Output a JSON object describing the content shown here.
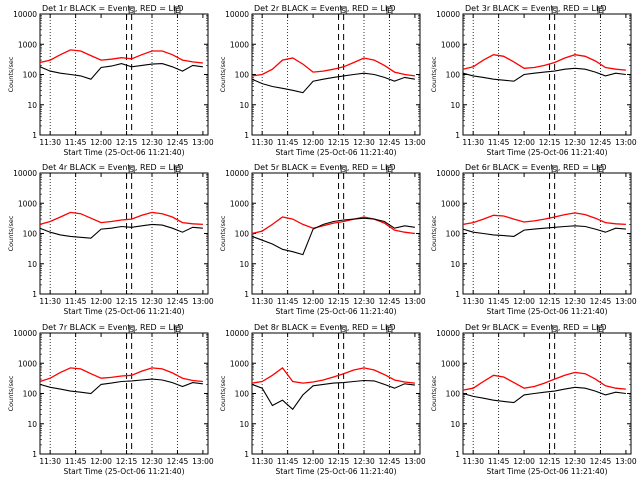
{
  "figure": {
    "ylabel": "Counts/sec",
    "xlabel": "Start Time (25-Oct-06 11:21:40)",
    "legend_text": "BLACK = Events, RED = LLD",
    "y_ticks": [
      "1",
      "10",
      "100",
      "1000",
      "10000"
    ],
    "x_ticks": [
      "11:30",
      "11:45",
      "12:00",
      "12:15",
      "12:30",
      "12:45",
      "13:00"
    ],
    "top_markers": [
      "S",
      "E"
    ],
    "colors": {
      "events": "#000000",
      "lld": "#ff0000"
    },
    "y_scale": "log"
  },
  "chart_data": [
    {
      "type": "line",
      "title": "Det 1r BLACK = Events, RED = LLD",
      "xlabel": "Start Time (25-Oct-06 11:21:40)",
      "ylabel": "Counts/sec",
      "x": [
        "11:24",
        "11:30",
        "11:36",
        "11:42",
        "11:48",
        "11:54",
        "12:00",
        "12:06",
        "12:12",
        "12:18",
        "12:24",
        "12:30",
        "12:36",
        "12:42",
        "12:48",
        "12:54",
        "13:00"
      ],
      "series": [
        {
          "name": "LLD",
          "values": [
            250,
            300,
            450,
            650,
            600,
            420,
            300,
            320,
            360,
            330,
            450,
            600,
            600,
            450,
            300,
            260,
            240
          ]
        },
        {
          "name": "Events",
          "values": [
            180,
            130,
            110,
            100,
            90,
            70,
            170,
            190,
            230,
            180,
            200,
            220,
            230,
            180,
            130,
            200,
            180
          ]
        }
      ],
      "ylim": [
        1,
        10000
      ],
      "xlim": [
        "11:24",
        "13:03"
      ],
      "grid": false
    },
    {
      "type": "line",
      "title": "Det 2r BLACK = Events, RED = LLD",
      "xlabel": "Start Time (25-Oct-06 11:21:40)",
      "ylabel": "Counts/sec",
      "x": [
        "11:24",
        "11:30",
        "11:36",
        "11:42",
        "11:48",
        "11:54",
        "12:00",
        "12:06",
        "12:12",
        "12:18",
        "12:24",
        "12:30",
        "12:36",
        "12:42",
        "12:48",
        "12:54",
        "13:00"
      ],
      "series": [
        {
          "name": "LLD",
          "values": [
            90,
            100,
            150,
            300,
            350,
            220,
            120,
            130,
            150,
            180,
            250,
            350,
            300,
            200,
            120,
            100,
            90
          ]
        },
        {
          "name": "Events",
          "values": [
            70,
            50,
            40,
            35,
            30,
            25,
            60,
            70,
            80,
            90,
            100,
            110,
            100,
            80,
            60,
            80,
            70
          ]
        }
      ],
      "ylim": [
        1,
        10000
      ],
      "xlim": [
        "11:24",
        "13:03"
      ],
      "grid": false
    },
    {
      "type": "line",
      "title": "Det 3r BLACK = Events, RED = LLD",
      "xlabel": "Start Time (25-Oct-06 11:21:40)",
      "ylabel": "Counts/sec",
      "x": [
        "11:24",
        "11:30",
        "11:36",
        "11:42",
        "11:48",
        "11:54",
        "12:00",
        "12:06",
        "12:12",
        "12:18",
        "12:24",
        "12:30",
        "12:36",
        "12:42",
        "12:48",
        "12:54",
        "13:00"
      ],
      "series": [
        {
          "name": "LLD",
          "values": [
            150,
            180,
            300,
            450,
            400,
            260,
            160,
            170,
            200,
            250,
            350,
            450,
            400,
            280,
            170,
            150,
            140
          ]
        },
        {
          "name": "Events",
          "values": [
            110,
            90,
            80,
            70,
            65,
            60,
            100,
            110,
            120,
            130,
            150,
            160,
            150,
            120,
            90,
            110,
            100
          ]
        }
      ],
      "ylim": [
        1,
        10000
      ],
      "xlim": [
        "11:24",
        "13:03"
      ],
      "grid": false
    },
    {
      "type": "line",
      "title": "Det 4r BLACK = Events, RED = LLD",
      "xlabel": "Start Time (25-Oct-06 11:21:40)",
      "ylabel": "Counts/sec",
      "x": [
        "11:24",
        "11:30",
        "11:36",
        "11:42",
        "11:48",
        "11:54",
        "12:00",
        "12:06",
        "12:12",
        "12:18",
        "12:24",
        "12:30",
        "12:36",
        "12:42",
        "12:48",
        "12:54",
        "13:00"
      ],
      "series": [
        {
          "name": "LLD",
          "values": [
            200,
            250,
            350,
            500,
            450,
            320,
            230,
            250,
            280,
            300,
            400,
            500,
            450,
            350,
            230,
            210,
            200
          ]
        },
        {
          "name": "Events",
          "values": [
            150,
            110,
            90,
            80,
            75,
            70,
            140,
            150,
            170,
            160,
            180,
            200,
            190,
            150,
            110,
            160,
            150
          ]
        }
      ],
      "ylim": [
        1,
        10000
      ],
      "xlim": [
        "11:24",
        "13:03"
      ],
      "grid": false
    },
    {
      "type": "line",
      "title": "Det 5r BLACK = Events, RED = LLD",
      "xlabel": "Start Time (25-Oct-06 11:21:40)",
      "ylabel": "Counts/sec",
      "x": [
        "11:24",
        "11:30",
        "11:36",
        "11:42",
        "11:48",
        "11:54",
        "12:00",
        "12:06",
        "12:12",
        "12:18",
        "12:24",
        "12:30",
        "12:36",
        "12:42",
        "12:48",
        "12:54",
        "13:00"
      ],
      "series": [
        {
          "name": "LLD",
          "values": [
            100,
            120,
            200,
            350,
            300,
            200,
            150,
            180,
            220,
            250,
            300,
            350,
            300,
            220,
            130,
            110,
            100
          ]
        },
        {
          "name": "Events",
          "values": [
            80,
            60,
            45,
            30,
            25,
            20,
            140,
            200,
            250,
            280,
            300,
            320,
            300,
            250,
            150,
            180,
            160
          ]
        }
      ],
      "ylim": [
        1,
        10000
      ],
      "xlim": [
        "11:24",
        "13:03"
      ],
      "grid": false
    },
    {
      "type": "line",
      "title": "Det 6r BLACK = Events, RED = LLD",
      "xlabel": "Start Time (25-Oct-06 11:21:40)",
      "ylabel": "Counts/sec",
      "x": [
        "11:24",
        "11:30",
        "11:36",
        "11:42",
        "11:48",
        "11:54",
        "12:00",
        "12:06",
        "12:12",
        "12:18",
        "12:24",
        "12:30",
        "12:36",
        "12:42",
        "12:48",
        "12:54",
        "13:00"
      ],
      "series": [
        {
          "name": "LLD",
          "values": [
            200,
            230,
            300,
            400,
            380,
            300,
            240,
            260,
            300,
            350,
            420,
            480,
            420,
            320,
            230,
            210,
            200
          ]
        },
        {
          "name": "Events",
          "values": [
            140,
            110,
            100,
            90,
            85,
            80,
            130,
            140,
            150,
            160,
            170,
            180,
            170,
            140,
            110,
            150,
            140
          ]
        }
      ],
      "ylim": [
        1,
        10000
      ],
      "xlim": [
        "11:24",
        "13:03"
      ],
      "grid": false
    },
    {
      "type": "line",
      "title": "Det 7r BLACK = Events, RED = LLD",
      "xlabel": "Start Time (25-Oct-06 11:21:40)",
      "ylabel": "Counts/sec",
      "x": [
        "11:24",
        "11:30",
        "11:36",
        "11:42",
        "11:48",
        "11:54",
        "12:00",
        "12:06",
        "12:12",
        "12:18",
        "12:24",
        "12:30",
        "12:36",
        "12:42",
        "12:48",
        "12:54",
        "13:00"
      ],
      "series": [
        {
          "name": "LLD",
          "values": [
            250,
            320,
            500,
            700,
            650,
            450,
            320,
            340,
            380,
            400,
            550,
            700,
            650,
            480,
            320,
            270,
            250
          ]
        },
        {
          "name": "Events",
          "values": [
            200,
            160,
            140,
            120,
            110,
            100,
            200,
            220,
            250,
            260,
            280,
            300,
            280,
            230,
            170,
            230,
            210
          ]
        }
      ],
      "ylim": [
        1,
        10000
      ],
      "xlim": [
        "11:24",
        "13:03"
      ],
      "grid": false
    },
    {
      "type": "line",
      "title": "Det 8r BLACK = Events, RED = LLD",
      "xlabel": "Start Time (25-Oct-06 11:21:40)",
      "ylabel": "Counts/sec",
      "x": [
        "11:24",
        "11:30",
        "11:36",
        "11:42",
        "11:48",
        "11:54",
        "12:00",
        "12:06",
        "12:12",
        "12:18",
        "12:24",
        "12:30",
        "12:36",
        "12:42",
        "12:48",
        "12:54",
        "13:00"
      ],
      "series": [
        {
          "name": "LLD",
          "values": [
            220,
            250,
            400,
            700,
            250,
            220,
            240,
            280,
            350,
            450,
            600,
            700,
            600,
            420,
            280,
            240,
            220
          ]
        },
        {
          "name": "Events",
          "values": [
            200,
            150,
            40,
            60,
            30,
            90,
            180,
            200,
            220,
            230,
            250,
            270,
            260,
            200,
            150,
            210,
            190
          ]
        }
      ],
      "ylim": [
        1,
        10000
      ],
      "xlim": [
        "11:24",
        "13:03"
      ],
      "grid": false
    },
    {
      "type": "line",
      "title": "Det 9r BLACK = Events, RED = LLD",
      "xlabel": "Start Time (25-Oct-06 11:21:40)",
      "ylabel": "Counts/sec",
      "x": [
        "11:24",
        "11:30",
        "11:36",
        "11:42",
        "11:48",
        "11:54",
        "12:00",
        "12:06",
        "12:12",
        "12:18",
        "12:24",
        "12:30",
        "12:36",
        "12:42",
        "12:48",
        "12:54",
        "13:00"
      ],
      "series": [
        {
          "name": "LLD",
          "values": [
            130,
            150,
            250,
            400,
            350,
            230,
            150,
            170,
            220,
            300,
            400,
            500,
            450,
            300,
            180,
            150,
            140
          ]
        },
        {
          "name": "Events",
          "values": [
            100,
            80,
            70,
            60,
            55,
            50,
            90,
            100,
            110,
            120,
            140,
            160,
            150,
            120,
            90,
            110,
            100
          ]
        }
      ],
      "ylim": [
        1,
        10000
      ],
      "xlim": [
        "11:24",
        "13:03"
      ],
      "grid": false
    }
  ]
}
